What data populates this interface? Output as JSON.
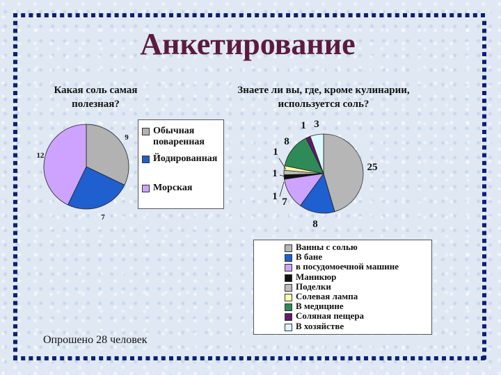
{
  "title": "Анкетирование",
  "note": "Опрошено 28 человек",
  "chart_data": [
    {
      "type": "pie",
      "title": "Какая соль самая полезная?",
      "categories": [
        "Обычная поваренная",
        "Йодированная",
        "Морская"
      ],
      "values": [
        9,
        7,
        12
      ],
      "colors": [
        "#b2b2b2",
        "#1f5fcf",
        "#cda3ff"
      ],
      "legend_position": "right"
    },
    {
      "type": "pie",
      "title": "Знаете ли вы, где, кроме кулинарии, используется соль?",
      "categories": [
        "Ванны с солью",
        "В бане",
        "в посудомоечной машине",
        "Маникюр",
        "Поделки",
        "Солевая лампа",
        "В медицине",
        "Соляная пещера",
        "В хозяйстве"
      ],
      "values": [
        25,
        8,
        7,
        1,
        1,
        1,
        8,
        1,
        3
      ],
      "colors": [
        "#b6b6b6",
        "#1f5fcf",
        "#cda3ff",
        "#111111",
        "#bdbdbd",
        "#ffffb0",
        "#2e8b57",
        "#6a1570",
        "#ddf7ff"
      ],
      "legend_position": "bottom"
    }
  ]
}
